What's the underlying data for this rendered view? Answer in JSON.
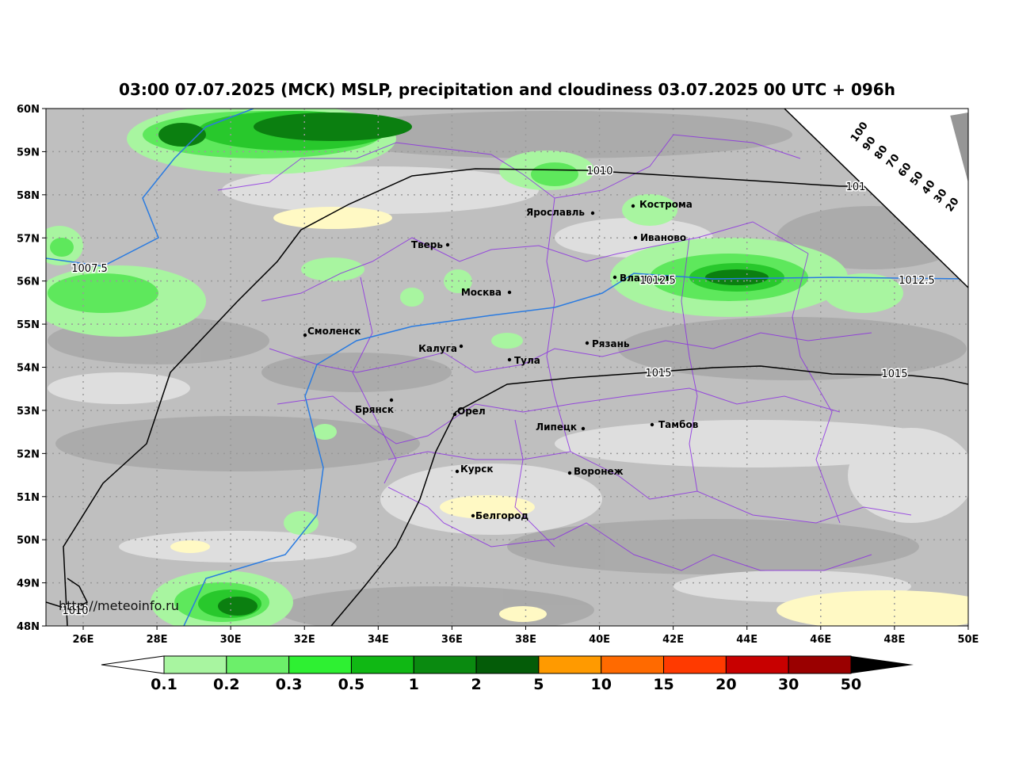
{
  "header": {
    "title": "03:00 07.07.2025 (МСК) MSLP, precipitation and cloudiness 03.07.2025 00 UTC + 096h"
  },
  "axes": {
    "lat_labels": [
      "60N",
      "59N",
      "58N",
      "57N",
      "56N",
      "55N",
      "54N",
      "53N",
      "52N",
      "51N",
      "50N",
      "49N",
      "48N"
    ],
    "lon_labels": [
      "26E",
      "28E",
      "30E",
      "32E",
      "34E",
      "36E",
      "38E",
      "40E",
      "42E",
      "44E",
      "46E",
      "48E",
      "50E"
    ]
  },
  "cities": [
    "Тверь",
    "Ярославль",
    "Кострома",
    "Иваново",
    "Владимир",
    "Москва",
    "Смоленск",
    "Калуга",
    "Рязань",
    "Тула",
    "Брянск",
    "Орел",
    "Липецк",
    "Тамбов",
    "Курск",
    "Воронеж",
    "Белгород"
  ],
  "isobar_labels": [
    "1010",
    "101",
    "1007.5",
    "1012.5",
    "1012.5",
    "1015",
    "1015",
    "1010"
  ],
  "cloudiness_labels": [
    "100",
    "90",
    "80",
    "70",
    "60",
    "50",
    "40",
    "30",
    "20"
  ],
  "watermark": "http://meteoinfo.ru",
  "colorbar_labels": [
    "0.1",
    "0.2",
    "0.3",
    "0.5",
    "1",
    "2",
    "5",
    "10",
    "15",
    "20",
    "30",
    "50"
  ]
}
